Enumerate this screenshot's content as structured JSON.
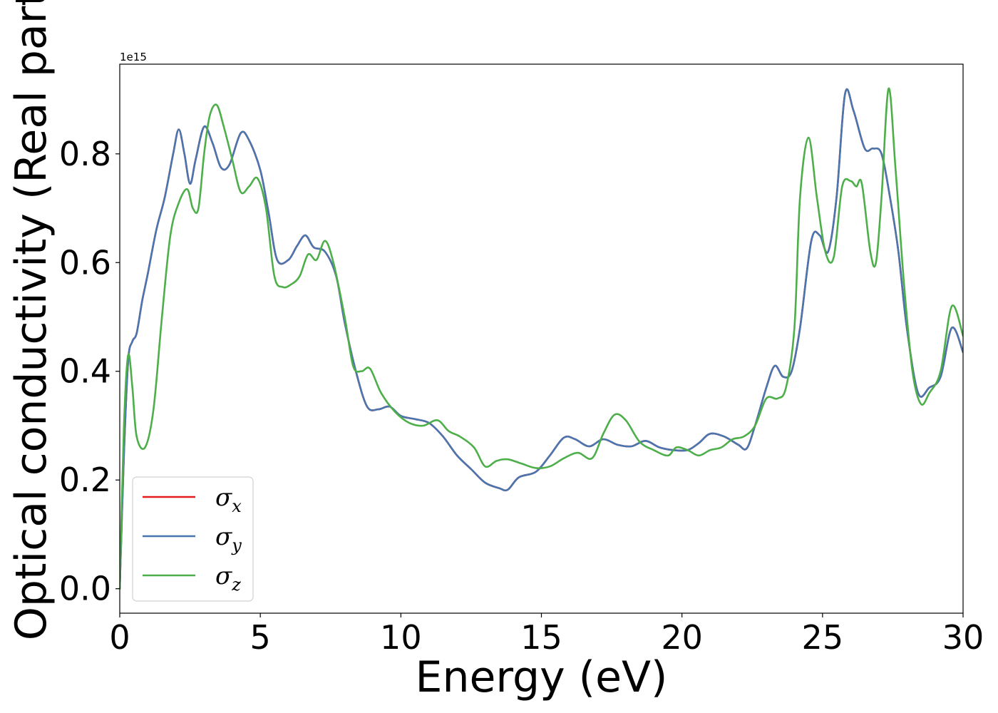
{
  "chart_data": {
    "type": "line",
    "title": "",
    "xlabel": "Energy (eV)",
    "ylabel": "Optical conductivity (Real part)",
    "y_offset_text": "1e15",
    "xlim": [
      0,
      30
    ],
    "ylim": [
      -0.045,
      0.965
    ],
    "xticks": [
      0,
      5,
      10,
      15,
      20,
      25,
      30
    ],
    "xtick_labels": [
      "0",
      "5",
      "10",
      "15",
      "20",
      "25",
      "30"
    ],
    "yticks": [
      0.0,
      0.2,
      0.4,
      0.6,
      0.8
    ],
    "ytick_labels": [
      "0.0",
      "0.2",
      "0.4",
      "0.6",
      "0.8"
    ],
    "grid": false,
    "legend_position": "lower-left",
    "series": [
      {
        "name": "σ_x",
        "legend_symbol": "σ",
        "legend_sub": "x",
        "color": "#e41a1c",
        "x": [
          0,
          0.15,
          0.3,
          0.45,
          0.6,
          0.8,
          1.0,
          1.3,
          1.6,
          1.9,
          2.1,
          2.3,
          2.5,
          2.7,
          3.0,
          3.3,
          3.6,
          3.9,
          4.3,
          4.6,
          5.0,
          5.3,
          5.6,
          6.0,
          6.3,
          6.6,
          6.9,
          7.3,
          7.7,
          8.0,
          8.4,
          8.8,
          9.2,
          9.6,
          10.0,
          10.5,
          11.0,
          11.5,
          12.0,
          12.5,
          13.0,
          13.5,
          13.8,
          14.2,
          14.8,
          15.3,
          15.8,
          16.2,
          16.7,
          17.2,
          17.7,
          18.2,
          18.7,
          19.2,
          19.7,
          20.2,
          20.6,
          21.0,
          21.5,
          22.0,
          22.3,
          22.6,
          23.0,
          23.3,
          23.6,
          23.9,
          24.2,
          24.6,
          24.9,
          25.2,
          25.5,
          25.8,
          26.1,
          26.5,
          26.8,
          27.1,
          27.4,
          27.7,
          28.0,
          28.4,
          28.8,
          29.2,
          29.6,
          30.0
        ],
        "values": [
          0.0,
          0.25,
          0.42,
          0.455,
          0.47,
          0.53,
          0.58,
          0.66,
          0.72,
          0.8,
          0.845,
          0.8,
          0.745,
          0.79,
          0.85,
          0.82,
          0.775,
          0.78,
          0.838,
          0.825,
          0.77,
          0.69,
          0.605,
          0.605,
          0.63,
          0.65,
          0.628,
          0.62,
          0.575,
          0.49,
          0.4,
          0.335,
          0.33,
          0.335,
          0.318,
          0.312,
          0.305,
          0.28,
          0.245,
          0.22,
          0.195,
          0.185,
          0.182,
          0.205,
          0.215,
          0.245,
          0.278,
          0.275,
          0.262,
          0.275,
          0.265,
          0.262,
          0.272,
          0.26,
          0.255,
          0.255,
          0.268,
          0.285,
          0.28,
          0.265,
          0.258,
          0.3,
          0.37,
          0.41,
          0.39,
          0.4,
          0.48,
          0.64,
          0.65,
          0.62,
          0.72,
          0.91,
          0.88,
          0.81,
          0.81,
          0.8,
          0.72,
          0.62,
          0.48,
          0.36,
          0.37,
          0.39,
          0.48,
          0.435
        ]
      },
      {
        "name": "σ_y",
        "legend_symbol": "σ",
        "legend_sub": "y",
        "color": "#4a76b0",
        "x": [
          0,
          0.15,
          0.3,
          0.45,
          0.6,
          0.8,
          1.0,
          1.3,
          1.6,
          1.9,
          2.1,
          2.3,
          2.5,
          2.7,
          3.0,
          3.3,
          3.6,
          3.9,
          4.3,
          4.6,
          5.0,
          5.3,
          5.6,
          6.0,
          6.3,
          6.6,
          6.9,
          7.3,
          7.7,
          8.0,
          8.4,
          8.8,
          9.2,
          9.6,
          10.0,
          10.5,
          11.0,
          11.5,
          12.0,
          12.5,
          13.0,
          13.5,
          13.8,
          14.2,
          14.8,
          15.3,
          15.8,
          16.2,
          16.7,
          17.2,
          17.7,
          18.2,
          18.7,
          19.2,
          19.7,
          20.2,
          20.6,
          21.0,
          21.5,
          22.0,
          22.3,
          22.6,
          23.0,
          23.3,
          23.6,
          23.9,
          24.2,
          24.6,
          24.9,
          25.2,
          25.5,
          25.8,
          26.1,
          26.5,
          26.8,
          27.1,
          27.4,
          27.7,
          28.0,
          28.4,
          28.8,
          29.2,
          29.6,
          30.0
        ],
        "values": [
          0.0,
          0.25,
          0.42,
          0.455,
          0.47,
          0.53,
          0.58,
          0.66,
          0.72,
          0.8,
          0.845,
          0.8,
          0.745,
          0.79,
          0.85,
          0.82,
          0.775,
          0.78,
          0.838,
          0.825,
          0.77,
          0.69,
          0.605,
          0.605,
          0.63,
          0.65,
          0.628,
          0.62,
          0.575,
          0.49,
          0.4,
          0.335,
          0.33,
          0.335,
          0.318,
          0.312,
          0.305,
          0.28,
          0.245,
          0.22,
          0.195,
          0.185,
          0.182,
          0.205,
          0.215,
          0.245,
          0.278,
          0.275,
          0.262,
          0.275,
          0.265,
          0.262,
          0.272,
          0.26,
          0.255,
          0.255,
          0.268,
          0.285,
          0.28,
          0.265,
          0.258,
          0.3,
          0.37,
          0.41,
          0.39,
          0.4,
          0.48,
          0.64,
          0.65,
          0.62,
          0.72,
          0.91,
          0.88,
          0.81,
          0.81,
          0.8,
          0.72,
          0.62,
          0.48,
          0.36,
          0.37,
          0.39,
          0.48,
          0.435
        ]
      },
      {
        "name": "σ_z",
        "legend_symbol": "σ",
        "legend_sub": "z",
        "color": "#4daf4a",
        "x": [
          0,
          0.15,
          0.3,
          0.45,
          0.6,
          0.9,
          1.2,
          1.5,
          1.8,
          2.1,
          2.4,
          2.6,
          2.8,
          3.0,
          3.2,
          3.45,
          3.7,
          4.0,
          4.3,
          4.6,
          4.9,
          5.2,
          5.5,
          5.8,
          6.1,
          6.4,
          6.7,
          7.0,
          7.3,
          7.6,
          8.0,
          8.3,
          8.6,
          8.9,
          9.3,
          9.8,
          10.3,
          10.8,
          11.3,
          11.7,
          12.1,
          12.6,
          13.0,
          13.4,
          13.8,
          14.3,
          14.8,
          15.3,
          15.8,
          16.3,
          16.8,
          17.2,
          17.6,
          18.0,
          18.5,
          19.0,
          19.5,
          19.8,
          20.2,
          20.6,
          21.0,
          21.4,
          21.8,
          22.2,
          22.6,
          23.0,
          23.4,
          23.7,
          24.0,
          24.2,
          24.5,
          24.8,
          25.1,
          25.4,
          25.7,
          26.0,
          26.2,
          26.4,
          26.7,
          26.9,
          27.1,
          27.35,
          27.6,
          27.9,
          28.2,
          28.5,
          28.8,
          29.2,
          29.6,
          30.0
        ],
        "values": [
          0.0,
          0.3,
          0.43,
          0.37,
          0.28,
          0.26,
          0.33,
          0.5,
          0.65,
          0.71,
          0.735,
          0.7,
          0.7,
          0.8,
          0.87,
          0.89,
          0.85,
          0.79,
          0.73,
          0.74,
          0.755,
          0.7,
          0.575,
          0.555,
          0.56,
          0.575,
          0.615,
          0.605,
          0.64,
          0.6,
          0.5,
          0.41,
          0.4,
          0.405,
          0.36,
          0.325,
          0.305,
          0.3,
          0.31,
          0.29,
          0.28,
          0.26,
          0.225,
          0.235,
          0.238,
          0.23,
          0.222,
          0.225,
          0.24,
          0.25,
          0.24,
          0.285,
          0.32,
          0.31,
          0.27,
          0.255,
          0.245,
          0.26,
          0.255,
          0.245,
          0.255,
          0.26,
          0.275,
          0.28,
          0.3,
          0.35,
          0.35,
          0.37,
          0.48,
          0.72,
          0.83,
          0.72,
          0.62,
          0.61,
          0.74,
          0.75,
          0.74,
          0.745,
          0.62,
          0.6,
          0.72,
          0.92,
          0.77,
          0.56,
          0.4,
          0.34,
          0.36,
          0.4,
          0.52,
          0.465
        ]
      }
    ]
  }
}
